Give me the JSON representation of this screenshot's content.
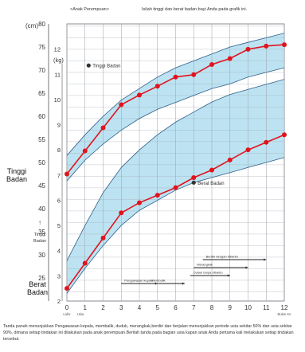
{
  "header": {
    "title": "<Anak Perempuan>",
    "instruction": "Isilah tinggi dan berat badan bayi Anda pada grafik ini."
  },
  "side_labels": {
    "height": "Tinggi Badan",
    "weight": "Berat Badan"
  },
  "caption": "Tanda panah menunjukkan Pengawasan kepala, membalik, duduk, merangkak,berdiri dan berjalan menunjukkan periode usia sekitar 50% dan usia sekitar 90%, dimana setiap tindakan ini dilakukan pada anak perempuan.Berilah tanda pada bagian usia kapan anak Anda pertama kali melakukan setiap tindakan tersebut.",
  "colors": {
    "band": "#bde3f2",
    "band_edge": "#2f5f8a",
    "grid": "#9aa0a8",
    "series": "#e0141d"
  },
  "chart_data": {
    "type": "line",
    "x_axis": {
      "label": "Bulan Ke",
      "range": [
        0,
        12
      ],
      "ticks": [
        "0",
        "1",
        "2",
        "3",
        "4",
        "5",
        "6",
        "7",
        "8",
        "9",
        "10",
        "11",
        "12"
      ],
      "birth_label": "Lahir",
      "birth_arrow_label": "Usia"
    },
    "height_axis": {
      "unit": "(cm)",
      "range": [
        20,
        80
      ],
      "ticks": [
        "80",
        "75",
        "70",
        "65",
        "60",
        "55",
        "50",
        "45",
        "40",
        "35",
        "30",
        "25"
      ],
      "label": "Tinggi Badan"
    },
    "weight_axis": {
      "unit": "(kg)",
      "range": [
        2,
        13
      ],
      "ticks": [
        "12",
        "11",
        "10",
        "9",
        "8",
        "7",
        "6",
        "5",
        "4",
        "3",
        "2"
      ],
      "label": "Berat Badan"
    },
    "grid": true,
    "series": [
      {
        "name": "Tinggi Badan",
        "axis": "height",
        "x": [
          0,
          1,
          2,
          3,
          4,
          5,
          6,
          7,
          8,
          9,
          10,
          11,
          12
        ],
        "values": [
          47.5,
          52.5,
          57.5,
          62.5,
          64.6,
          66.5,
          68.5,
          69.0,
          71.2,
          72.5,
          74.5,
          75.2,
          75.5
        ],
        "band_low": [
          46,
          50.5,
          54,
          57,
          59.5,
          61.5,
          63,
          64.5,
          66,
          67,
          68.5,
          69.5,
          70.5
        ],
        "band_high": [
          51.5,
          56,
          60,
          63.5,
          66,
          68.5,
          70.5,
          72,
          73.5,
          75,
          76,
          77,
          78
        ]
      },
      {
        "name": "Berat Badan",
        "axis": "weight",
        "x": [
          0,
          1,
          2,
          3,
          4,
          5,
          6,
          7,
          8,
          9,
          10,
          11,
          12
        ],
        "values": [
          2.5,
          3.5,
          4.5,
          5.5,
          5.9,
          6.2,
          6.5,
          6.9,
          7.2,
          7.6,
          8.0,
          8.3,
          8.6
        ],
        "band_low": [
          2.3,
          3.3,
          4.2,
          5.0,
          5.6,
          6.0,
          6.4,
          6.7,
          6.9,
          7.1,
          7.3,
          7.5,
          7.7
        ],
        "band_high": [
          3.6,
          5.0,
          6.3,
          7.3,
          8.0,
          8.6,
          9.1,
          9.5,
          9.9,
          10.2,
          10.4,
          10.6,
          10.8
        ]
      }
    ],
    "annotations": [
      {
        "text": "Tinggi Badan",
        "x": 1.2,
        "axis": "height",
        "y": 71
      },
      {
        "text": "Berat Badan",
        "x": 7.0,
        "axis": "weight",
        "y": 6.7
      }
    ],
    "milestones": [
      {
        "name": "Berdiri dengan dibantu",
        "start": 7.5,
        "end": 11,
        "row": 0
      },
      {
        "name": "Merangkak",
        "start": 7.0,
        "end": 10,
        "row": 1
      },
      {
        "name": "Duduk tanpa dibantu",
        "start": 6.8,
        "end": 9,
        "row": 2
      },
      {
        "name": "Pengawasan kepala",
        "start": 3.0,
        "end": 5.0,
        "row": 3
      },
      {
        "name": "Membalik",
        "start": 4.5,
        "end": 6.5,
        "row": 3
      }
    ]
  }
}
